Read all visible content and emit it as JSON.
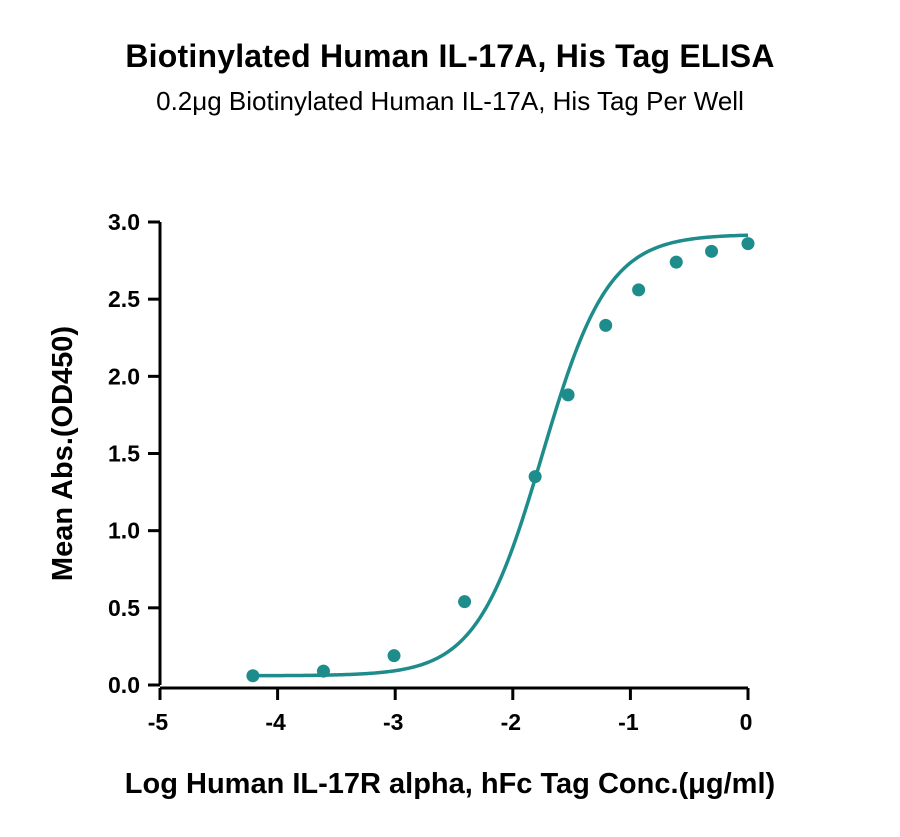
{
  "colors": {
    "series": "#1f8c8c",
    "axis": "#000000"
  },
  "chart_data": {
    "type": "scatter",
    "title": "Biotinylated Human IL-17A, His Tag ELISA",
    "subtitle": "0.2μg Biotinylated Human IL-17A, His Tag Per Well",
    "xlabel": "Log Human IL-17R alpha, hFc  Tag Conc.(μg/ml)",
    "ylabel": "Mean Abs.(OD450)",
    "xlim": [
      -5,
      0
    ],
    "ylim": [
      0,
      3.0
    ],
    "xticks": [
      -5,
      -4,
      -3,
      -2,
      -1,
      0
    ],
    "xtick_labels": [
      "-5",
      "-4",
      "-3",
      "-2",
      "-1",
      "0"
    ],
    "yticks": [
      0,
      0.5,
      1.0,
      1.5,
      2.0,
      2.5,
      3.0
    ],
    "ytick_labels": [
      "0.0",
      "0.5",
      "1.0",
      "1.5",
      "2.0",
      "2.5",
      "3.0"
    ],
    "grid": false,
    "legend": "none",
    "series": [
      {
        "x": [
          -4.21,
          -3.61,
          -3.01,
          -2.41,
          -1.81,
          -1.53,
          -1.21,
          -0.93,
          -0.61,
          -0.31,
          0.0
        ],
        "y": [
          0.06,
          0.09,
          0.19,
          0.54,
          1.35,
          1.88,
          2.33,
          2.56,
          2.74,
          2.81,
          2.86
        ],
        "fit": "four-parameter logistic curve",
        "fit_params": {
          "bottom": 0.06,
          "top": 2.92,
          "logEC50": -1.75,
          "hill": 1.55
        }
      }
    ]
  }
}
